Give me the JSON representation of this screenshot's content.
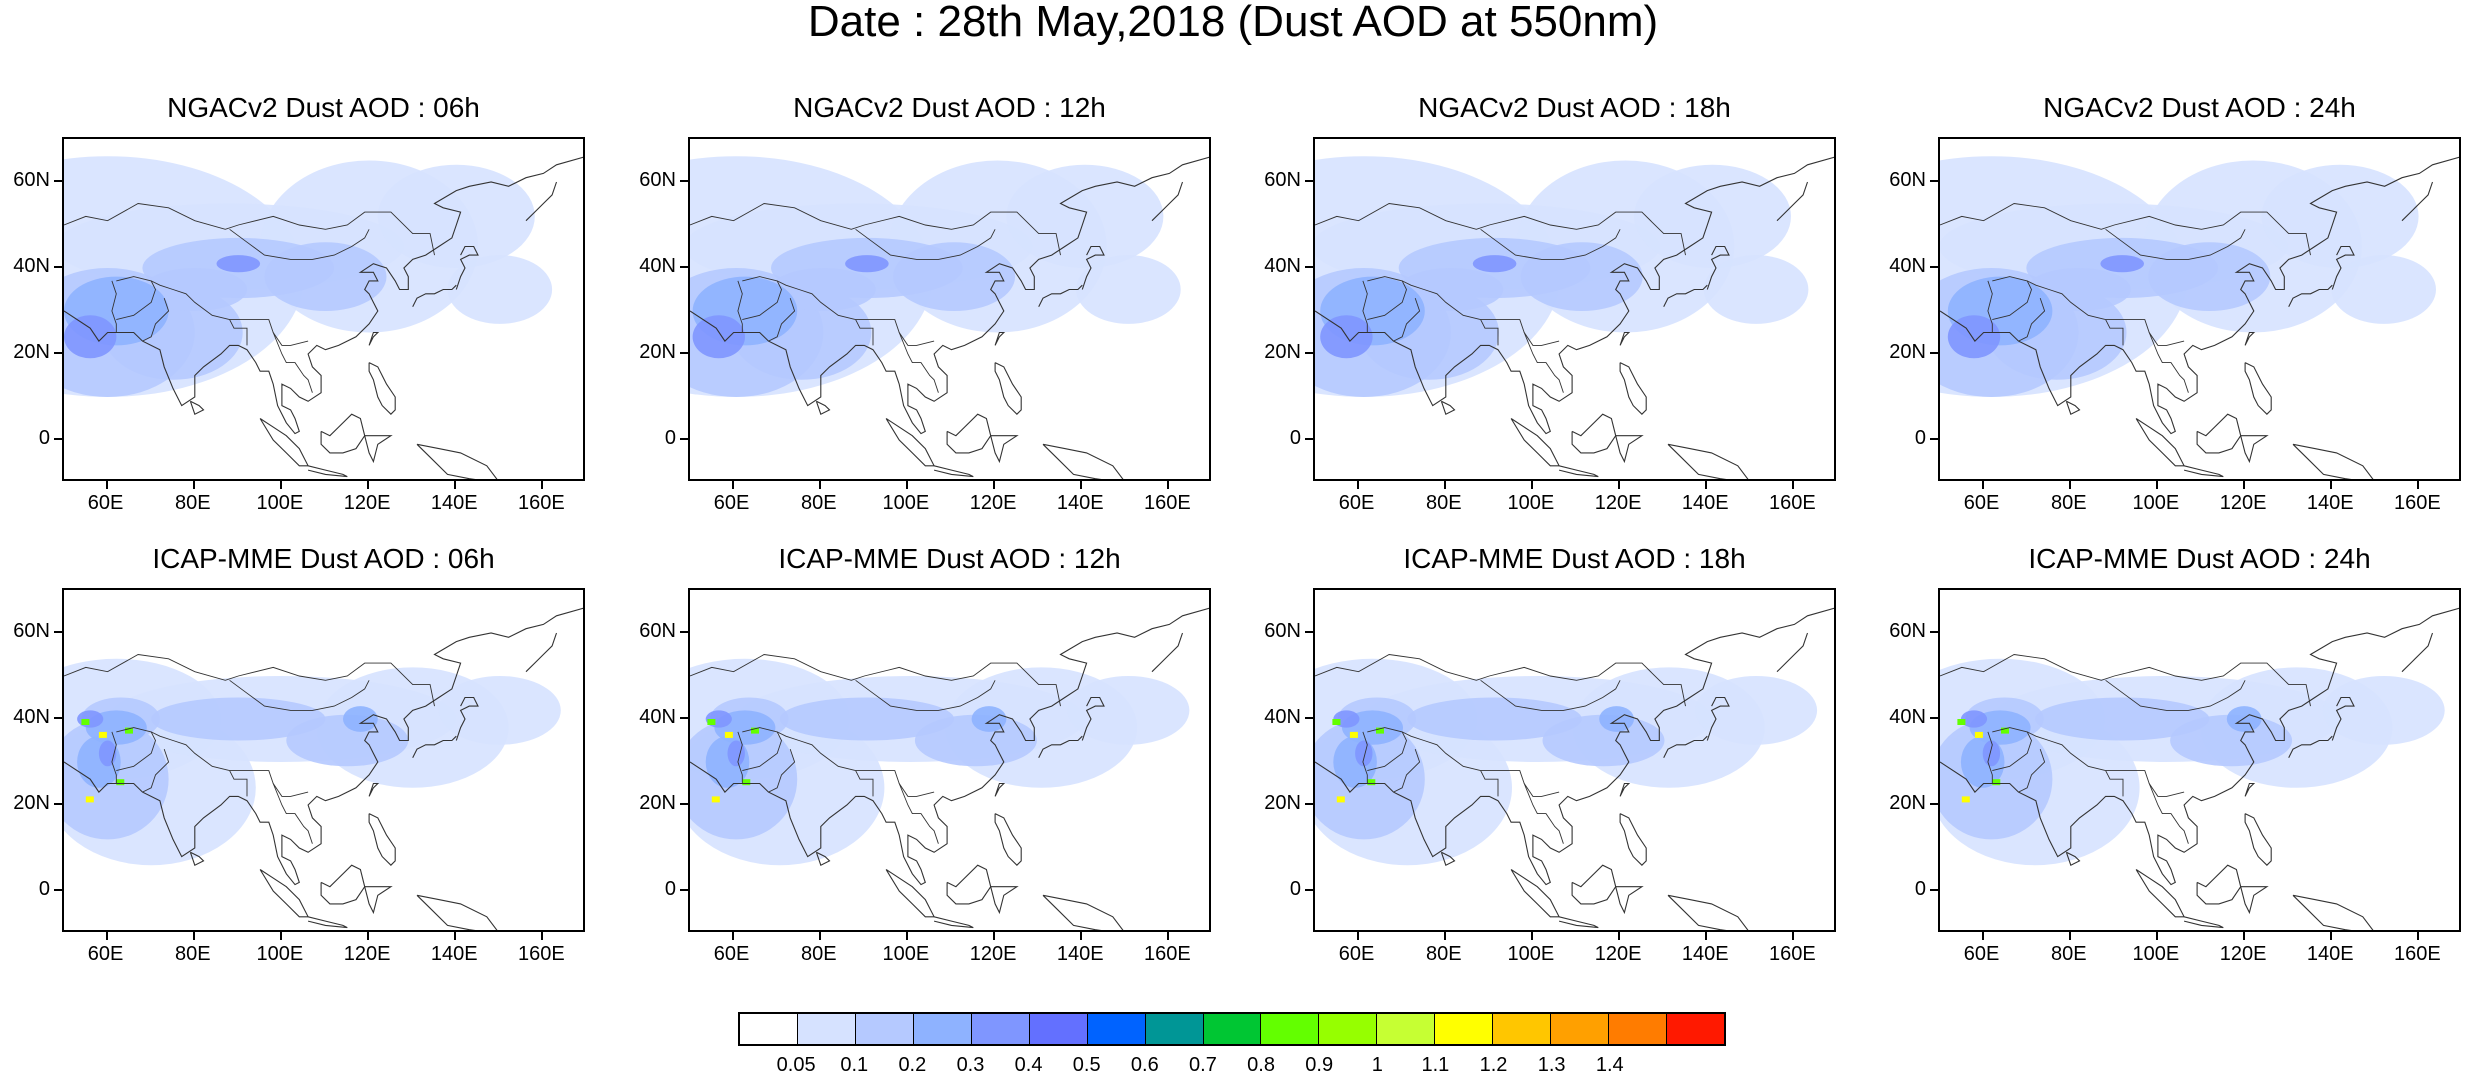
{
  "title": "Date : 28th May,2018 (Dust AOD at 550nm)",
  "panels": [
    {
      "title": "NGACv2 Dust AOD : 06h",
      "model": "NGACv2",
      "hour": "06h"
    },
    {
      "title": "NGACv2 Dust AOD : 12h",
      "model": "NGACv2",
      "hour": "12h"
    },
    {
      "title": "NGACv2 Dust AOD : 18h",
      "model": "NGACv2",
      "hour": "18h"
    },
    {
      "title": "NGACv2 Dust AOD : 24h",
      "model": "NGACv2",
      "hour": "24h"
    },
    {
      "title": "ICAP-MME Dust AOD : 06h",
      "model": "ICAP-MME",
      "hour": "06h"
    },
    {
      "title": "ICAP-MME Dust AOD : 12h",
      "model": "ICAP-MME",
      "hour": "12h"
    },
    {
      "title": "ICAP-MME Dust AOD : 18h",
      "model": "ICAP-MME",
      "hour": "18h"
    },
    {
      "title": "ICAP-MME Dust AOD : 24h",
      "model": "ICAP-MME",
      "hour": "24h"
    }
  ],
  "axes": {
    "lon_ticks": [
      "60E",
      "80E",
      "100E",
      "120E",
      "140E",
      "160E"
    ],
    "lon_values": [
      60,
      80,
      100,
      120,
      140,
      160
    ],
    "lat_ticks": [
      "60N",
      "40N",
      "20N",
      "0"
    ],
    "lat_values": [
      60,
      40,
      20,
      0
    ],
    "lon_range": [
      50,
      170
    ],
    "lat_range": [
      -10,
      70
    ]
  },
  "colorbar": {
    "labels": [
      "0.05",
      "0.1",
      "0.2",
      "0.3",
      "0.4",
      "0.5",
      "0.6",
      "0.7",
      "0.8",
      "0.9",
      "1",
      "1.1",
      "1.2",
      "1.3",
      "1.4"
    ],
    "colors": [
      "#ffffff",
      "#d6e2ff",
      "#b5c9ff",
      "#8eb2ff",
      "#7f96ff",
      "#6370ff",
      "#0063ff",
      "#009696",
      "#00c633",
      "#63ff00",
      "#96ff00",
      "#c6ff33",
      "#ffff00",
      "#ffc600",
      "#ffa000",
      "#ff7c00",
      "#ff1900"
    ]
  },
  "style": {
    "ngac_level1": "#d6e2ff",
    "ngac_level2": "#b5c9ff",
    "ngac_level3": "#8eb2ff",
    "ngac_level4": "#7f96ff",
    "icap_high1": "#63ff00",
    "icap_high2": "#ffff00",
    "coastline": "#333333"
  }
}
